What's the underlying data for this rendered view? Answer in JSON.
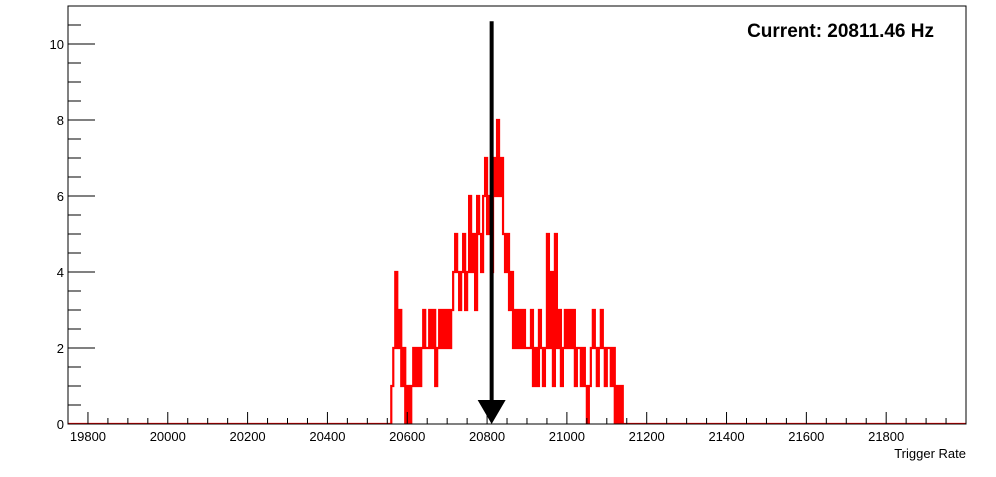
{
  "chart_data": {
    "type": "histogram",
    "annotation": "Current: 20811.46 Hz",
    "xlabel": "Trigger Rate",
    "ylabel": "",
    "xlim": [
      19750,
      22000
    ],
    "ylim": [
      0,
      11
    ],
    "x_ticks": [
      19800,
      20000,
      20200,
      20400,
      20600,
      20800,
      21000,
      21200,
      21400,
      21600,
      21800
    ],
    "y_ticks": [
      0,
      2,
      4,
      6,
      8,
      10
    ],
    "bin_width": 5,
    "series": [
      {
        "color": "#ff0000",
        "bins": [
          [
            20560,
            1
          ],
          [
            20565,
            2
          ],
          [
            20570,
            4
          ],
          [
            20575,
            2
          ],
          [
            20580,
            3
          ],
          [
            20585,
            1
          ],
          [
            20590,
            2
          ],
          [
            20595,
            0
          ],
          [
            20600,
            1
          ],
          [
            20605,
            0
          ],
          [
            20610,
            1
          ],
          [
            20615,
            2
          ],
          [
            20620,
            1
          ],
          [
            20625,
            2
          ],
          [
            20630,
            1
          ],
          [
            20635,
            2
          ],
          [
            20640,
            3
          ],
          [
            20645,
            2
          ],
          [
            20650,
            2
          ],
          [
            20655,
            3
          ],
          [
            20660,
            2
          ],
          [
            20665,
            3
          ],
          [
            20670,
            1
          ],
          [
            20675,
            2
          ],
          [
            20680,
            3
          ],
          [
            20685,
            2
          ],
          [
            20690,
            3
          ],
          [
            20695,
            2
          ],
          [
            20700,
            3
          ],
          [
            20705,
            2
          ],
          [
            20710,
            3
          ],
          [
            20715,
            4
          ],
          [
            20720,
            5
          ],
          [
            20725,
            4
          ],
          [
            20730,
            3
          ],
          [
            20735,
            4
          ],
          [
            20740,
            5
          ],
          [
            20745,
            3
          ],
          [
            20750,
            4
          ],
          [
            20755,
            6
          ],
          [
            20760,
            4
          ],
          [
            20765,
            5
          ],
          [
            20770,
            3
          ],
          [
            20775,
            6
          ],
          [
            20780,
            5
          ],
          [
            20785,
            4
          ],
          [
            20790,
            6
          ],
          [
            20795,
            7
          ],
          [
            20800,
            5
          ],
          [
            20805,
            6
          ],
          [
            20810,
            4
          ],
          [
            20815,
            7
          ],
          [
            20820,
            6
          ],
          [
            20825,
            8
          ],
          [
            20830,
            6
          ],
          [
            20835,
            7
          ],
          [
            20840,
            5
          ],
          [
            20845,
            4
          ],
          [
            20850,
            5
          ],
          [
            20855,
            3
          ],
          [
            20860,
            4
          ],
          [
            20865,
            2
          ],
          [
            20870,
            3
          ],
          [
            20875,
            2
          ],
          [
            20880,
            3
          ],
          [
            20885,
            2
          ],
          [
            20890,
            3
          ],
          [
            20895,
            2
          ],
          [
            20900,
            2
          ],
          [
            20905,
            2
          ],
          [
            20910,
            3
          ],
          [
            20915,
            1
          ],
          [
            20920,
            2
          ],
          [
            20925,
            1
          ],
          [
            20930,
            3
          ],
          [
            20935,
            2
          ],
          [
            20940,
            1
          ],
          [
            20945,
            2
          ],
          [
            20950,
            5
          ],
          [
            20955,
            2
          ],
          [
            20960,
            4
          ],
          [
            20965,
            1
          ],
          [
            20970,
            5
          ],
          [
            20975,
            2
          ],
          [
            20980,
            3
          ],
          [
            20985,
            1
          ],
          [
            20990,
            2
          ],
          [
            20995,
            3
          ],
          [
            21000,
            2
          ],
          [
            21005,
            3
          ],
          [
            21010,
            2
          ],
          [
            21015,
            3
          ],
          [
            21020,
            1
          ],
          [
            21025,
            2
          ],
          [
            21030,
            2
          ],
          [
            21035,
            1
          ],
          [
            21040,
            2
          ],
          [
            21045,
            1
          ],
          [
            21050,
            0
          ],
          [
            21055,
            1
          ],
          [
            21060,
            2
          ],
          [
            21065,
            3
          ],
          [
            21070,
            2
          ],
          [
            21075,
            1
          ],
          [
            21080,
            2
          ],
          [
            21085,
            3
          ],
          [
            21090,
            2
          ],
          [
            21095,
            1
          ],
          [
            21100,
            2
          ],
          [
            21105,
            2
          ],
          [
            21110,
            1
          ],
          [
            21115,
            2
          ],
          [
            21120,
            0
          ],
          [
            21125,
            1
          ],
          [
            21130,
            0
          ],
          [
            21135,
            1
          ],
          [
            21140,
            0
          ]
        ]
      }
    ],
    "marker": {
      "x": 20811.46,
      "direction": "down",
      "color": "#000000"
    }
  }
}
